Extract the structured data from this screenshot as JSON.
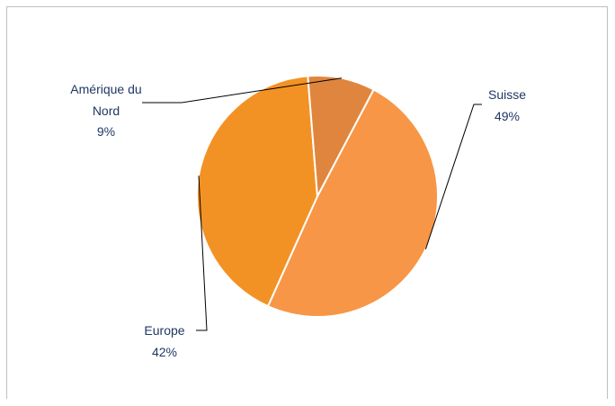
{
  "chart_data": {
    "type": "pie",
    "title": "",
    "slices": [
      {
        "name": "Suisse",
        "value": 49,
        "label_pct": "49%",
        "color": "#f79646"
      },
      {
        "name": "Europe",
        "value": 42,
        "label_pct": "42%",
        "color": "#f39224"
      },
      {
        "name": "Amérique du Nord",
        "value": 9,
        "label_pct": "9%",
        "color": "#e0853d"
      }
    ],
    "label_color": "#1f3864",
    "slice_border_color": "#ffffff",
    "legend": "none"
  }
}
